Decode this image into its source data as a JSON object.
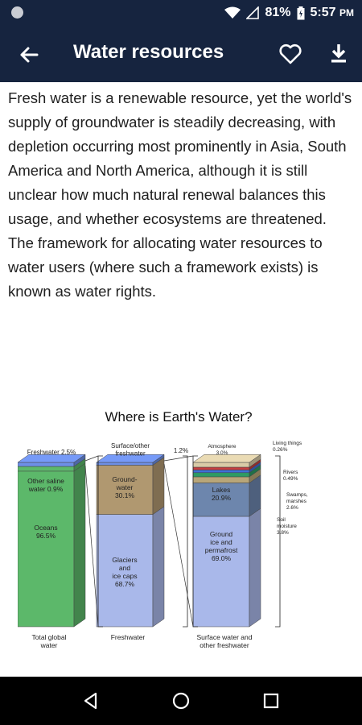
{
  "status_bar": {
    "battery": "81%",
    "time": "5:57",
    "ampm": "PM"
  },
  "app_bar": {
    "title": "Water resources"
  },
  "article": {
    "paragraph": "Fresh water is a renewable resource, yet the world's supply of groundwater is steadily decreasing, with depletion occurring most prominently in Asia, South America and North America, although it is still unclear how much natural renewal balances this usage, and whether ecosystems are threatened. The framework for allocating water resources to water users (where such a framework exists) is known as water rights."
  },
  "figure": {
    "title": "Where is Earth's Water?",
    "bars": [
      {
        "caption": [
          "Total global",
          "water"
        ],
        "segments": [
          {
            "label": [
              "Oceans",
              "96.5%"
            ],
            "value": 96.5,
            "color": "#5cb86a"
          },
          {
            "label": [
              "Other saline",
              "water 0.9%"
            ],
            "value": 0.9,
            "color": "#5cb86a"
          },
          {
            "label": [
              "Freshwater 2.5%"
            ],
            "value": 2.5,
            "color": "#6d8fe6"
          }
        ]
      },
      {
        "caption": [
          "Freshwater"
        ],
        "segments": [
          {
            "label": [
              "Glaciers",
              "and",
              "ice caps",
              "68.7%"
            ],
            "value": 68.7,
            "color": "#a9b8ea"
          },
          {
            "label": [
              "Ground-",
              "water",
              "30.1%"
            ],
            "value": 30.1,
            "color": "#b09870"
          },
          {
            "label": [
              "Surface/other",
              "freshwater"
            ],
            "value": 1.2,
            "color": "#6d8fe6"
          }
        ],
        "top_note": "1.2%"
      },
      {
        "caption": [
          "Surface water and",
          "other freshwater"
        ],
        "segments": [
          {
            "label": [
              "Ground",
              "ice and",
              "permafrost",
              "69.0%"
            ],
            "value": 69.0,
            "color": "#a9b8ea"
          },
          {
            "label": [
              "Lakes",
              "20.9%"
            ],
            "value": 20.9,
            "color": "#6d86ad"
          },
          {
            "label": [
              "Soil",
              "moisture",
              "3.8%"
            ],
            "value": 3.8,
            "color": "#b8a678"
          },
          {
            "label": [
              "Swamps,",
              "marshes",
              "2.6%"
            ],
            "value": 2.6,
            "color": "#2d9b64"
          },
          {
            "label": [
              "Rivers",
              "0.49%"
            ],
            "value": 0.49,
            "color": "#3e6fd8"
          },
          {
            "label": [
              "Living things",
              "0.26%"
            ],
            "value": 0.26,
            "color": "#c63e3e"
          },
          {
            "label": [
              "Atmosphere",
              "3.0%"
            ],
            "value": 3.0,
            "color": "#d9cba7"
          }
        ]
      }
    ]
  },
  "nav": {}
}
